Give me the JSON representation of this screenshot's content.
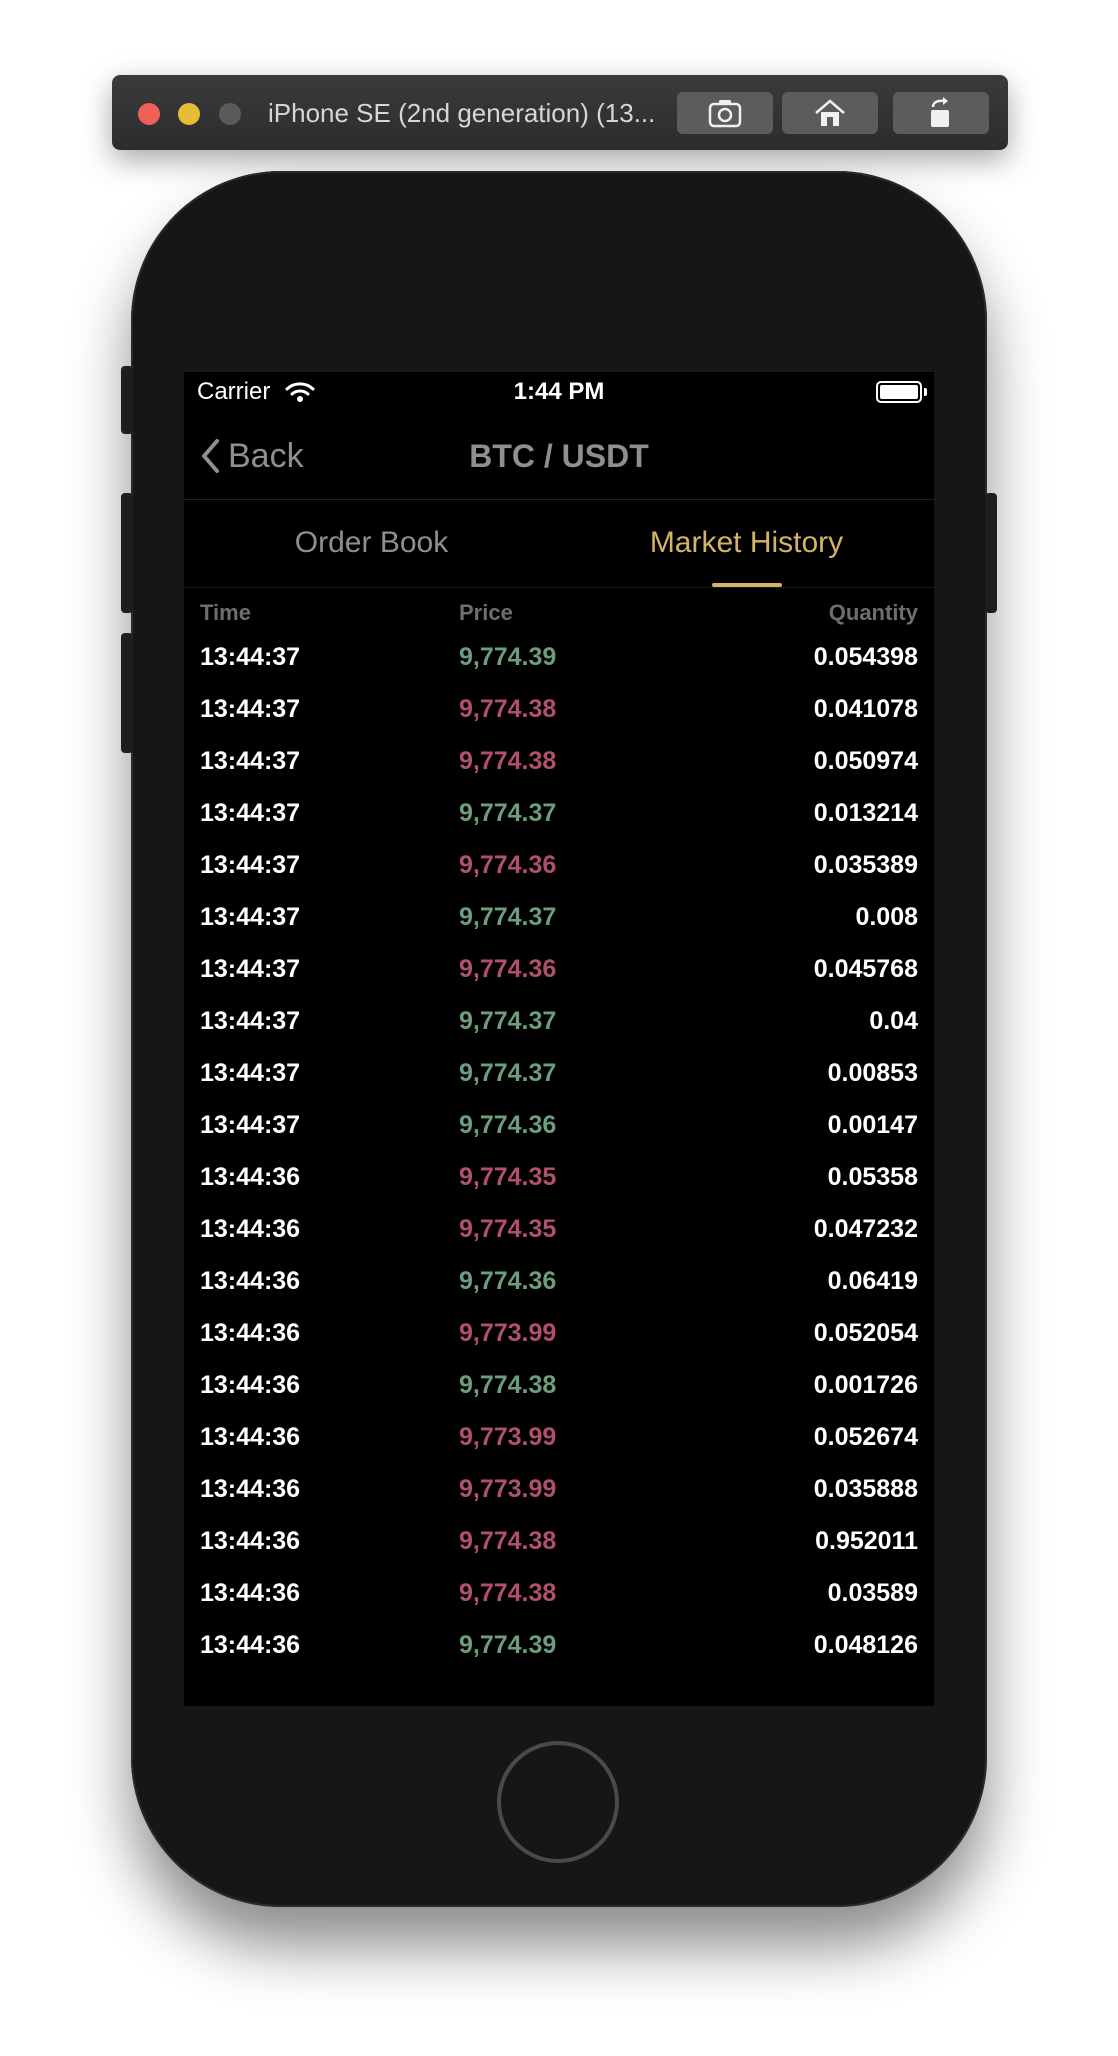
{
  "simulator": {
    "title": "iPhone SE (2nd generation) (13...",
    "buttons": [
      {
        "icon": "screenshot-icon"
      },
      {
        "icon": "home-icon"
      },
      {
        "icon": "rotate-icon"
      }
    ]
  },
  "status_bar": {
    "carrier": "Carrier",
    "time": "1:44 PM"
  },
  "nav": {
    "back_label": "Back",
    "title": "BTC / USDT"
  },
  "tabs": [
    {
      "label": "Order Book",
      "active": false
    },
    {
      "label": "Market History",
      "active": true
    }
  ],
  "table": {
    "headers": {
      "time": "Time",
      "price": "Price",
      "quantity": "Quantity"
    },
    "rows": [
      {
        "time": "13:44:37",
        "price": "9,774.39",
        "quantity": "0.054398",
        "side": "buy"
      },
      {
        "time": "13:44:37",
        "price": "9,774.38",
        "quantity": "0.041078",
        "side": "sell"
      },
      {
        "time": "13:44:37",
        "price": "9,774.38",
        "quantity": "0.050974",
        "side": "sell"
      },
      {
        "time": "13:44:37",
        "price": "9,774.37",
        "quantity": "0.013214",
        "side": "buy"
      },
      {
        "time": "13:44:37",
        "price": "9,774.36",
        "quantity": "0.035389",
        "side": "sell"
      },
      {
        "time": "13:44:37",
        "price": "9,774.37",
        "quantity": "0.008",
        "side": "buy"
      },
      {
        "time": "13:44:37",
        "price": "9,774.36",
        "quantity": "0.045768",
        "side": "sell"
      },
      {
        "time": "13:44:37",
        "price": "9,774.37",
        "quantity": "0.04",
        "side": "buy"
      },
      {
        "time": "13:44:37",
        "price": "9,774.37",
        "quantity": "0.00853",
        "side": "buy"
      },
      {
        "time": "13:44:37",
        "price": "9,774.36",
        "quantity": "0.00147",
        "side": "buy"
      },
      {
        "time": "13:44:36",
        "price": "9,774.35",
        "quantity": "0.05358",
        "side": "sell"
      },
      {
        "time": "13:44:36",
        "price": "9,774.35",
        "quantity": "0.047232",
        "side": "sell"
      },
      {
        "time": "13:44:36",
        "price": "9,774.36",
        "quantity": "0.06419",
        "side": "buy"
      },
      {
        "time": "13:44:36",
        "price": "9,773.99",
        "quantity": "0.052054",
        "side": "sell"
      },
      {
        "time": "13:44:36",
        "price": "9,774.38",
        "quantity": "0.001726",
        "side": "buy"
      },
      {
        "time": "13:44:36",
        "price": "9,773.99",
        "quantity": "0.052674",
        "side": "sell"
      },
      {
        "time": "13:44:36",
        "price": "9,773.99",
        "quantity": "0.035888",
        "side": "sell"
      },
      {
        "time": "13:44:36",
        "price": "9,774.38",
        "quantity": "0.952011",
        "side": "sell"
      },
      {
        "time": "13:44:36",
        "price": "9,774.38",
        "quantity": "0.03589",
        "side": "sell"
      },
      {
        "time": "13:44:36",
        "price": "9,774.39",
        "quantity": "0.048126",
        "side": "buy"
      }
    ]
  },
  "colors": {
    "accent": "#d4b366",
    "buy": "#6c9d7c",
    "sell": "#b0506a",
    "background": "#000000"
  }
}
